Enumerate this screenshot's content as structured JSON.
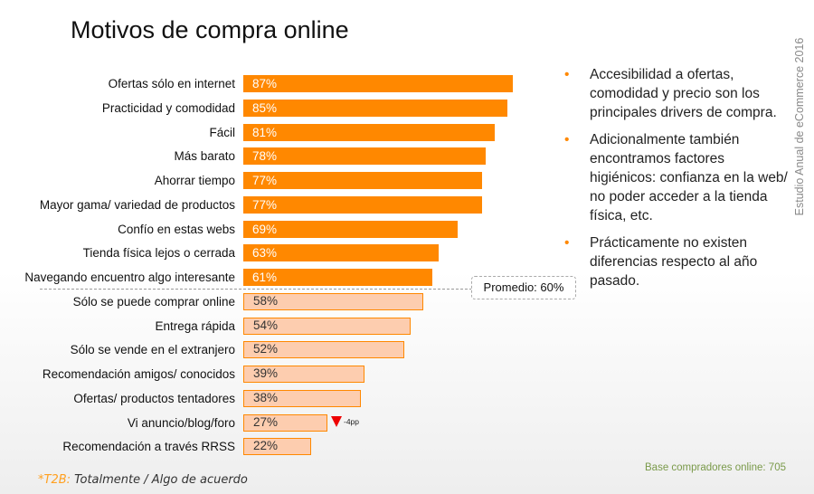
{
  "title": "Motivos de compra online",
  "side_text": "Estudio Anual de eCommerce 2016",
  "chart_data": {
    "type": "bar",
    "orientation": "horizontal",
    "categories": [
      "Ofertas sólo en internet",
      "Practicidad y comodidad",
      "Fácil",
      "Más barato",
      "Ahorrar tiempo",
      "Mayor gama/ variedad de productos",
      "Confío en estas webs",
      "Tienda física lejos o  cerrada",
      "Navegando encuentro algo interesante",
      "Sólo se puede comprar online",
      "Entrega rápida",
      "Sólo se vende en el extranjero",
      "Recomendación amigos/ conocidos",
      "Ofertas/ productos tentadores",
      "Vi anuncio/blog/foro",
      "Recomendación a través RRSS"
    ],
    "values": [
      87,
      85,
      81,
      78,
      77,
      77,
      69,
      63,
      61,
      58,
      54,
      52,
      39,
      38,
      27,
      22
    ],
    "data_labels": [
      "87%",
      "85%",
      "81%",
      "78%",
      "77%",
      "77%",
      "69%",
      "63%",
      "61%",
      "58%",
      "54%",
      "52%",
      "39%",
      "38%",
      "27%",
      "22%"
    ],
    "average": {
      "value": 60,
      "label": "Promedio: 60%"
    },
    "annotations": [
      {
        "category": "Vi anuncio/blog/foro",
        "text": "-4pp",
        "icon": "down-triangle"
      }
    ],
    "colors": {
      "above_average": "#ff8800",
      "below_average_fill": "#fdcdaf",
      "below_average_border": "#ff8800"
    }
  },
  "bullets": [
    "Accesibilidad a ofertas, comodidad y precio son los principales drivers de compra.",
    "Adicionalmente también encontramos factores higiénicos: confianza en la web/ no poder acceder a la tienda física, etc.",
    "Prácticamente no existen diferencias respecto al año pasado."
  ],
  "bullet_symbol": "•",
  "footnote": {
    "key": "*T2B:",
    "text": "Totalmente / Algo de acuerdo"
  },
  "base": "Base compradores online: 705"
}
